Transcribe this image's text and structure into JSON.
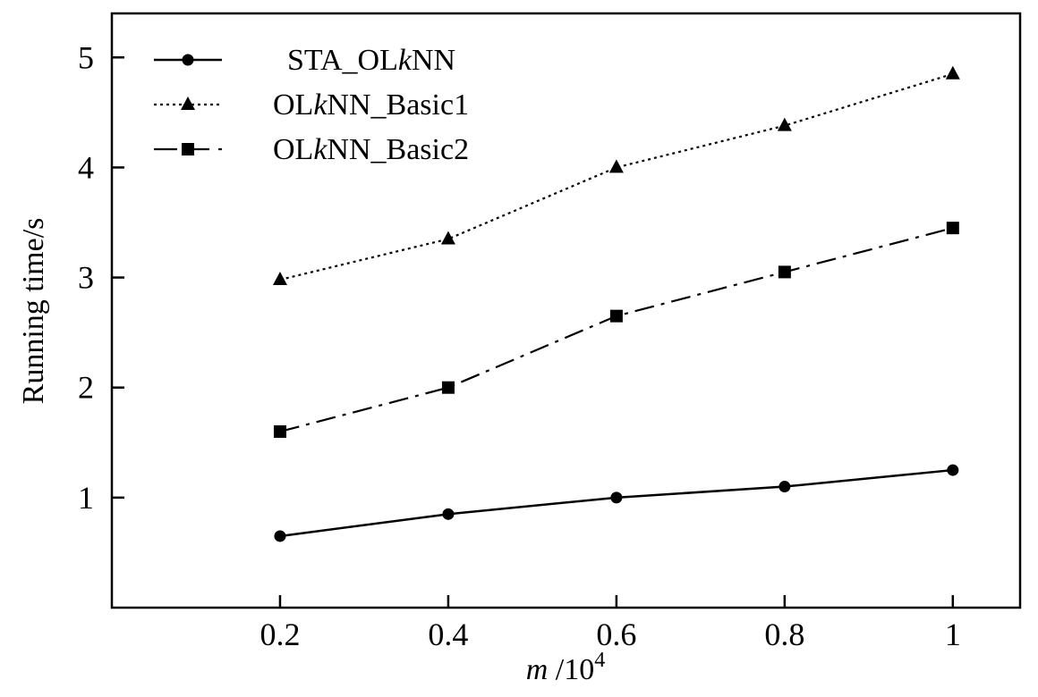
{
  "chart_data": {
    "type": "line",
    "title": "",
    "xlabel_var": "m",
    "xlabel_rest": " /10",
    "xlabel_exp": "4",
    "ylabel": "Running time/s",
    "x": [
      0.2,
      0.4,
      0.6,
      0.8,
      1.0
    ],
    "x_tick_labels": [
      "0.2",
      "0.4",
      "0.6",
      "0.8",
      "1"
    ],
    "y_ticks": [
      1,
      2,
      3,
      4,
      5
    ],
    "y_tick_labels": [
      "1",
      "2",
      "3",
      "4",
      "5"
    ],
    "xlim": [
      0.0,
      1.08
    ],
    "ylim": [
      0.0,
      5.4
    ],
    "grid": false,
    "legend_position": "top-left",
    "series": [
      {
        "name_pre": "STA_OL",
        "name_k": "k",
        "name_post": "NN",
        "values": [
          0.65,
          0.85,
          1.0,
          1.1,
          1.25
        ],
        "marker": "circle",
        "line_style": "solid",
        "color": "#000000"
      },
      {
        "name_pre": "OL",
        "name_k": "k",
        "name_post": "NN_Basic1",
        "values": [
          2.98,
          3.35,
          4.0,
          4.38,
          4.85
        ],
        "marker": "triangle",
        "line_style": "dotted",
        "color": "#000000"
      },
      {
        "name_pre": "OL",
        "name_k": "k",
        "name_post": "NN_Basic2",
        "values": [
          1.6,
          2.0,
          2.65,
          3.05,
          3.45
        ],
        "marker": "square",
        "line_style": "dashdot",
        "color": "#000000"
      }
    ]
  }
}
